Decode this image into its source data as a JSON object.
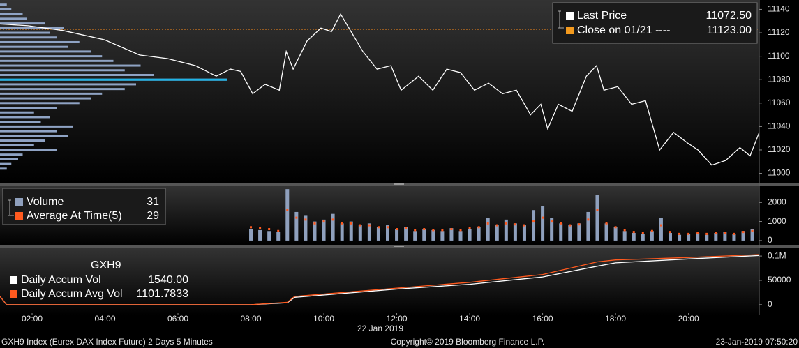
{
  "chart_data": [
    {
      "type": "line",
      "legend": [
        {
          "label": "Last Price",
          "value": "11072.50",
          "color": "#ffffff"
        },
        {
          "label": "Close on 01/21 ----",
          "value": "11123.00",
          "color": "#f39a1e"
        }
      ],
      "series": [
        {
          "name": "Last Price",
          "color": "#ffffff",
          "x": [
            1.12,
            1.89,
            2.84,
            3.99,
            4.95,
            5.71,
            6.48,
            7.05,
            7.44,
            7.72,
            8.05,
            8.39,
            8.78,
            8.97,
            9.16,
            9.54,
            9.92,
            10.21,
            10.46,
            10.69,
            11.07,
            11.46,
            11.84,
            12.12,
            12.6,
            12.99,
            13.37,
            13.75,
            14.13,
            14.52,
            14.9,
            15.28,
            15.67,
            15.95,
            16.14,
            16.43,
            16.81,
            17.2,
            17.48,
            17.68,
            18.06,
            18.44,
            18.82,
            19.21,
            19.59,
            19.97,
            20.26,
            20.64,
            21.02,
            21.41,
            21.69,
            21.94
          ],
          "values": [
            11127.5,
            11126,
            11122,
            11114,
            11101,
            11098,
            11092,
            11083,
            11089,
            11087,
            11068,
            11076,
            11071,
            11104,
            11089,
            11113,
            11124,
            11121,
            11136,
            11124,
            11104,
            11089,
            11092,
            11071,
            11083,
            11071,
            11089,
            11086,
            11071,
            11077,
            11068,
            11071,
            11050,
            11059,
            11038,
            11059,
            11053,
            11083,
            11092,
            11071,
            11074,
            11059,
            11062,
            11020,
            11035,
            11026,
            11020,
            11007,
            11011,
            11022,
            11015,
            11035
          ]
        }
      ],
      "close_line": 11123,
      "close_color": "#ff8c1a",
      "profile": {
        "color": "#8fa3c4",
        "poc_color": "#1fb4e6",
        "poc": 11080,
        "levels": [
          11004,
          11008,
          11012,
          11016,
          11020,
          11024,
          11028,
          11032,
          11036,
          11040,
          11044,
          11048,
          11052,
          11056,
          11060,
          11064,
          11068,
          11072,
          11076,
          11080,
          11084,
          11088,
          11092,
          11096,
          11100,
          11104,
          11108,
          11112,
          11116,
          11120,
          11124,
          11128,
          11132,
          11136,
          11140,
          11144
        ],
        "values": [
          3,
          5,
          8,
          10,
          25,
          15,
          20,
          30,
          25,
          32,
          18,
          22,
          15,
          25,
          35,
          40,
          45,
          55,
          60,
          100,
          68,
          55,
          62,
          50,
          45,
          40,
          30,
          35,
          25,
          22,
          28,
          20,
          12,
          10,
          5,
          3
        ]
      },
      "ylim": [
        10992,
        11148
      ],
      "yticks": [
        11000,
        11020,
        11040,
        11060,
        11080,
        11100,
        11120,
        11140
      ]
    },
    {
      "type": "bar",
      "legend": [
        {
          "label": "Volume",
          "value": 31,
          "color": "#8fa0bd"
        },
        {
          "label": "Average At Time(5)",
          "value": 29,
          "color": "#ff5a1f"
        }
      ],
      "x": [
        8,
        8.25,
        8.5,
        8.75,
        9,
        9.25,
        9.5,
        9.75,
        10,
        10.25,
        10.5,
        10.75,
        11,
        11.25,
        11.5,
        11.75,
        12,
        12.25,
        12.5,
        12.75,
        13,
        13.25,
        13.5,
        13.75,
        14,
        14.25,
        14.5,
        14.75,
        15,
        15.25,
        15.5,
        15.75,
        16,
        16.25,
        16.5,
        16.75,
        17,
        17.25,
        17.5,
        17.75,
        18,
        18.25,
        18.5,
        18.75,
        19,
        19.25,
        19.5,
        19.75,
        20,
        20.25,
        20.5,
        20.75,
        21,
        21.25,
        21.5,
        21.75
      ],
      "series": [
        {
          "name": "Volume",
          "color": "#8fa0bd",
          "values": [
            600,
            550,
            500,
            450,
            2700,
            1500,
            1300,
            1000,
            1100,
            1400,
            900,
            1000,
            800,
            900,
            700,
            800,
            600,
            700,
            500,
            600,
            550,
            500,
            650,
            500,
            600,
            700,
            1200,
            800,
            1100,
            900,
            800,
            1600,
            1800,
            1200,
            900,
            800,
            900,
            1500,
            2400,
            900,
            700,
            500,
            400,
            350,
            500,
            1200,
            400,
            300,
            350,
            400,
            300,
            400,
            450,
            350,
            500,
            600
          ]
        },
        {
          "name": "Average At Time(5)",
          "color": "#ff5a1f",
          "values": [
            700,
            650,
            600,
            500,
            1600,
            1200,
            1100,
            900,
            1000,
            1100,
            900,
            900,
            800,
            800,
            700,
            700,
            600,
            650,
            550,
            600,
            550,
            550,
            600,
            550,
            650,
            700,
            900,
            800,
            900,
            850,
            800,
            1000,
            1200,
            1000,
            900,
            800,
            850,
            1100,
            1600,
            900,
            700,
            550,
            450,
            400,
            500,
            800,
            450,
            350,
            350,
            400,
            350,
            400,
            400,
            350,
            450,
            500
          ]
        }
      ],
      "ylim": [
        -259,
        2852
      ],
      "yticks": [
        0,
        1000,
        2000
      ]
    },
    {
      "type": "line",
      "legend_title": "GXH9",
      "legend": [
        {
          "label": "Daily Accum Vol",
          "value": "1540.00",
          "color": "#ffffff"
        },
        {
          "label": "Daily Accum Avg Vol",
          "value": "1101.7833",
          "color": "#ff5a1f"
        }
      ],
      "series": [
        {
          "name": "Daily Accum Vol",
          "color": "#ffffff",
          "x": [
            1.12,
            1.3,
            8,
            9,
            9.2,
            12,
            14,
            16,
            17.5,
            18,
            20,
            21.94
          ],
          "values": [
            17000,
            0,
            0,
            4000,
            15000,
            32000,
            42000,
            57000,
            79000,
            86000,
            94000,
            101000
          ]
        },
        {
          "name": "Daily Accum Avg Vol",
          "color": "#ff5a1f",
          "x": [
            1.12,
            1.3,
            8,
            9,
            9.2,
            12,
            14,
            16,
            17.5,
            18,
            20,
            21.94
          ],
          "values": [
            17000,
            0,
            0,
            5000,
            17000,
            34000,
            46000,
            62000,
            88000,
            92000,
            97000,
            103000
          ]
        }
      ],
      "ylim": [
        -21700,
        115900
      ],
      "yticks": [
        0,
        50000,
        {
          "value": 100000,
          "label": "0.1M"
        }
      ],
      "xlim": [
        1.12,
        21.94
      ],
      "xticks": [
        {
          "value": 2,
          "label": "02:00"
        },
        {
          "value": 4,
          "label": "04:00"
        },
        {
          "value": 6,
          "label": "06:00"
        },
        {
          "value": 8,
          "label": "08:00"
        },
        {
          "value": 10,
          "label": "10:00"
        },
        {
          "value": 12,
          "label": "12:00"
        },
        {
          "value": 14,
          "label": "14:00"
        },
        {
          "value": 16,
          "label": "16:00"
        },
        {
          "value": 18,
          "label": "18:00"
        },
        {
          "value": 20,
          "label": "20:00"
        }
      ],
      "date_label": "22 Jan 2019"
    }
  ],
  "footer": {
    "left": "GXH9 Index (Eurex DAX Index Future) 2 Days 5 Minutes",
    "center": "Copyright© 2019 Bloomberg Finance L.P.",
    "right": "23-Jan-2019 07:50:20"
  }
}
